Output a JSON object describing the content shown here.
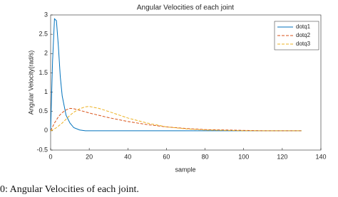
{
  "chart_data": {
    "type": "line",
    "title": "Angular Velocities of each joint",
    "x_label": "sample",
    "y_label": "Angular Velocity(rad/s)",
    "caption": "0: Angular Velocities of each joint.",
    "x": [
      0,
      1,
      2,
      3,
      4,
      5,
      6,
      8,
      10,
      12,
      15,
      18,
      20,
      25,
      30,
      40,
      50,
      60,
      70,
      80,
      90,
      100,
      110,
      120,
      130
    ],
    "series": [
      {
        "name": "dotq1",
        "color": "#0072bd",
        "dashed": false,
        "values": [
          0,
          1.8,
          2.9,
          2.85,
          2.2,
          1.4,
          0.9,
          0.4,
          0.2,
          0.08,
          0.02,
          0,
          0,
          0,
          0,
          0,
          0,
          0,
          0,
          0,
          0,
          0,
          0,
          0,
          0
        ]
      },
      {
        "name": "dotq2",
        "color": "#d95319",
        "dashed": true,
        "values": [
          0,
          0.1,
          0.2,
          0.28,
          0.36,
          0.42,
          0.47,
          0.54,
          0.58,
          0.57,
          0.53,
          0.49,
          0.46,
          0.4,
          0.34,
          0.24,
          0.16,
          0.1,
          0.06,
          0.03,
          0.02,
          0.01,
          0,
          0,
          0
        ]
      },
      {
        "name": "dotq3",
        "color": "#edb120",
        "dashed": true,
        "values": [
          0,
          0.02,
          0.05,
          0.08,
          0.12,
          0.16,
          0.2,
          0.3,
          0.4,
          0.48,
          0.57,
          0.62,
          0.63,
          0.58,
          0.5,
          0.33,
          0.2,
          0.1,
          0.05,
          0.02,
          0.01,
          0,
          0,
          0,
          0
        ]
      }
    ],
    "xlim": [
      0,
      140
    ],
    "xticks": [
      0,
      20,
      40,
      60,
      80,
      100,
      120,
      140
    ],
    "ylim": [
      -0.5,
      3
    ],
    "yticks": [
      -0.5,
      0,
      0.5,
      1,
      1.5,
      2,
      2.5,
      3
    ],
    "legend": "top-right"
  }
}
